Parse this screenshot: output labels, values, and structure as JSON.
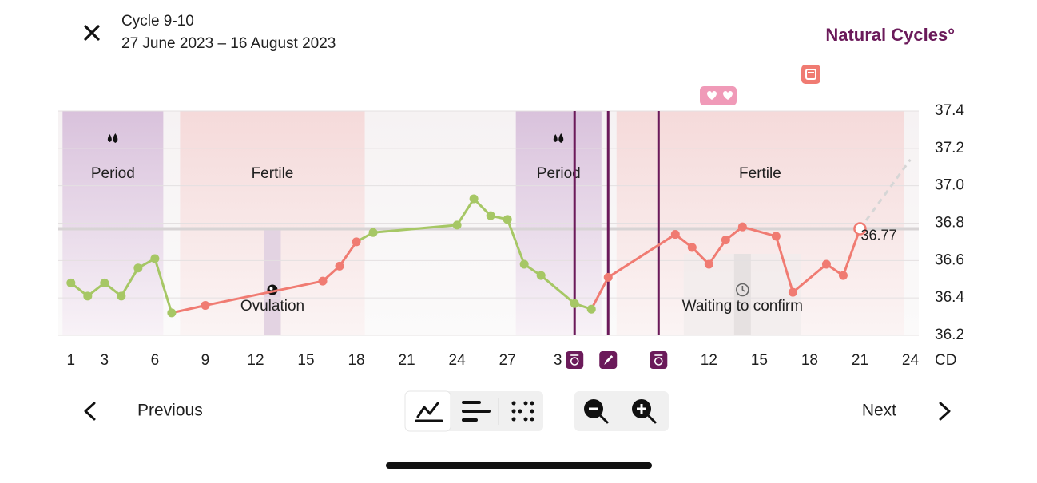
{
  "header": {
    "title": "Cycle 9-10",
    "dates": "27 June 2023 – 16 August 2023",
    "brand": "Natural Cycles°"
  },
  "chart_data": {
    "type": "line",
    "x": [
      0,
      1,
      2,
      3,
      4,
      5,
      6,
      8,
      15,
      16,
      17,
      18,
      23,
      24,
      25,
      26,
      27,
      28,
      30,
      31,
      32,
      36,
      37,
      38,
      39,
      40,
      42,
      43,
      45,
      46,
      47
    ],
    "values": [
      36.48,
      36.41,
      36.48,
      36.41,
      36.56,
      36.61,
      36.32,
      36.36,
      36.49,
      36.57,
      36.7,
      36.75,
      36.79,
      36.93,
      36.84,
      36.82,
      36.58,
      36.52,
      36.37,
      36.34,
      36.51,
      36.74,
      36.67,
      36.58,
      36.71,
      36.78,
      36.73,
      36.43,
      36.58,
      36.52,
      36.77
    ],
    "colors": [
      "#a6c765",
      "#a6c765",
      "#a6c765",
      "#a6c765",
      "#a6c765",
      "#a6c765",
      "#a6c765",
      "#f07b72",
      "#f07b72",
      "#f07b72",
      "#f07b72",
      "#a6c765",
      "#a6c765",
      "#a6c765",
      "#a6c765",
      "#a6c765",
      "#a6c765",
      "#a6c765",
      "#a6c765",
      "#a6c765",
      "#f07b72",
      "#f07b72",
      "#f07b72",
      "#f07b72",
      "#f07b72",
      "#f07b72",
      "#f07b72",
      "#f07b72",
      "#f07b72",
      "#f07b72",
      "#f07b72"
    ],
    "open_last": true,
    "projection": {
      "x": [
        47,
        50
      ],
      "values": [
        36.77,
        37.14
      ],
      "color": "#d6d6d6"
    },
    "coverline": 36.77,
    "ylim": [
      36.2,
      37.4
    ],
    "yticks": [
      36.2,
      36.4,
      36.6,
      36.8,
      {
        "value": 37.0,
        "label": "37.0"
      },
      37.2,
      37.4
    ],
    "xlim": [
      -0.8,
      50.5
    ],
    "xticks": [
      {
        "value": 0,
        "label": "1"
      },
      {
        "value": 2,
        "label": "3"
      },
      {
        "value": 5,
        "label": "6"
      },
      {
        "value": 8,
        "label": "9"
      },
      {
        "value": 11,
        "label": "12"
      },
      {
        "value": 14,
        "label": "15"
      },
      {
        "value": 17,
        "label": "18"
      },
      {
        "value": 20,
        "label": "21"
      },
      {
        "value": 23,
        "label": "24"
      },
      {
        "value": 26,
        "label": "27"
      },
      {
        "value": 29,
        "label": "3"
      },
      {
        "value": 38,
        "label": "12"
      },
      {
        "value": 41,
        "label": "15"
      },
      {
        "value": 44,
        "label": "18"
      },
      {
        "value": 47,
        "label": "21"
      },
      {
        "value": 50,
        "label": "24"
      }
    ],
    "x_unit": "CD",
    "grid": true,
    "phases": [
      {
        "label": "Period",
        "kind": "period",
        "start": -0.5,
        "end": 5.5
      },
      {
        "label": "Fertile",
        "kind": "fertile",
        "start": 6.5,
        "end": 17.5
      },
      {
        "label": "Period",
        "kind": "period",
        "start": 26.5,
        "end": 31.6
      },
      {
        "label": "Fertile",
        "kind": "fertile",
        "start": 32.5,
        "end": 49.6
      }
    ],
    "annotations": [
      {
        "label": "Ovulation",
        "x": 12,
        "icon": "ovulation"
      },
      {
        "label": "Waiting to confirm",
        "x": 40,
        "icon": "clock"
      }
    ],
    "markers": [
      {
        "x": 30,
        "icon": "test"
      },
      {
        "x": 32,
        "icon": "note"
      },
      {
        "x": 35,
        "icon": "test"
      }
    ]
  },
  "nav": {
    "previous": "Previous",
    "next": "Next"
  }
}
